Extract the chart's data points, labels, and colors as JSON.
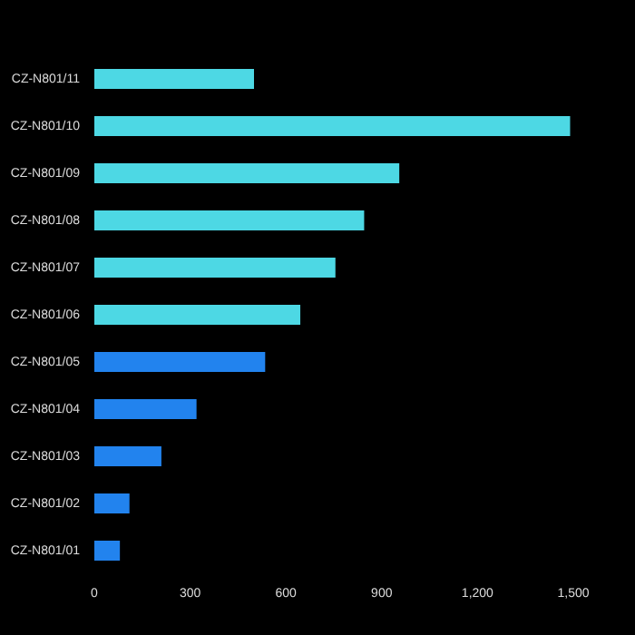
{
  "chart_data": {
    "type": "bar",
    "orientation": "horizontal",
    "categories": [
      "CZ-N801/11",
      "CZ-N801/10",
      "CZ-N801/09",
      "CZ-N801/08",
      "CZ-N801/07",
      "CZ-N801/06",
      "CZ-N801/05",
      "CZ-N801/04",
      "CZ-N801/03",
      "CZ-N801/02",
      "CZ-N801/01"
    ],
    "values": [
      500,
      1490,
      955,
      845,
      755,
      645,
      535,
      320,
      210,
      110,
      80
    ],
    "colors": [
      "#4dd8e4",
      "#4dd8e4",
      "#4dd8e4",
      "#4dd8e4",
      "#4dd8e4",
      "#4dd8e4",
      "#2283ee",
      "#2283ee",
      "#2283ee",
      "#2283ee",
      "#2283ee"
    ],
    "xlim": [
      0,
      1500
    ],
    "xticks": [
      0,
      300,
      600,
      900,
      {
        "value": 1200,
        "label": "1,200"
      },
      {
        "value": 1500,
        "label": "1,500"
      }
    ],
    "grid": false,
    "legend": false
  }
}
